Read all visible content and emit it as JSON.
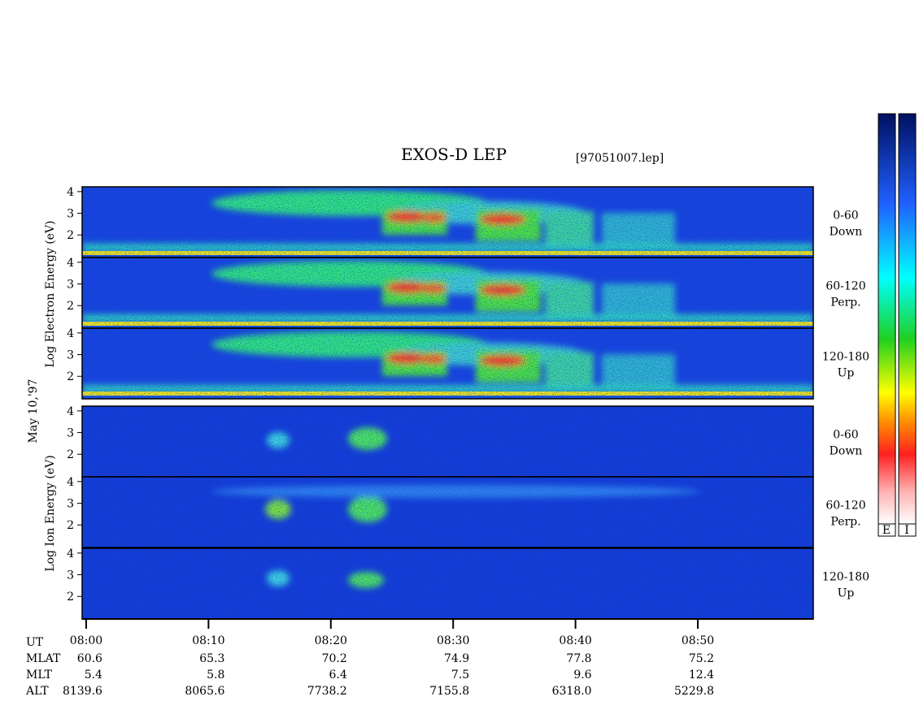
{
  "chart_data": {
    "type": "spectrogram",
    "title": "EXOS-D LEP",
    "subtitle": "[97051007.lep]",
    "electron_ylabel": "Log Electron Energy (eV)",
    "ion_ylabel": "Log Ion Energy (eV)",
    "date": "May 10,'97",
    "panels": [
      {
        "angle": "0-60",
        "direction": "Down"
      },
      {
        "angle": "60-120",
        "direction": "Perp."
      },
      {
        "angle": "120-180",
        "direction": "Up"
      },
      {
        "angle": "0-60",
        "direction": "Down"
      },
      {
        "angle": "60-120",
        "direction": "Perp."
      },
      {
        "angle": "120-180",
        "direction": "Up"
      }
    ],
    "ylim": [
      0.96,
      4.22
    ],
    "yticks": [
      2,
      3,
      4
    ],
    "xlim": [
      -0.33,
      59.44
    ],
    "xticks": [
      {
        "value": 0,
        "label": "08:00"
      },
      {
        "value": 10,
        "label": "08:10"
      },
      {
        "value": 20,
        "label": "08:20"
      },
      {
        "value": 30,
        "label": "08:30"
      },
      {
        "value": 40,
        "label": "08:40"
      },
      {
        "value": 50,
        "label": "08:50"
      }
    ],
    "ephemeris": [
      {
        "name": "UT",
        "values": []
      },
      {
        "name": "MLAT",
        "values": [
          "60.6",
          "65.3",
          "70.2",
          "74.9",
          "77.8",
          "75.2"
        ]
      },
      {
        "name": "MLT",
        "values": [
          "5.4",
          "5.8",
          "6.4",
          "7.5",
          "9.6",
          "12.4"
        ]
      },
      {
        "name": "ALT",
        "values": [
          "8139.6",
          "8065.6",
          "7738.2",
          "7155.8",
          "6318.0",
          "5229.8"
        ]
      }
    ],
    "colorbar_labels": [
      "E",
      "I"
    ]
  }
}
